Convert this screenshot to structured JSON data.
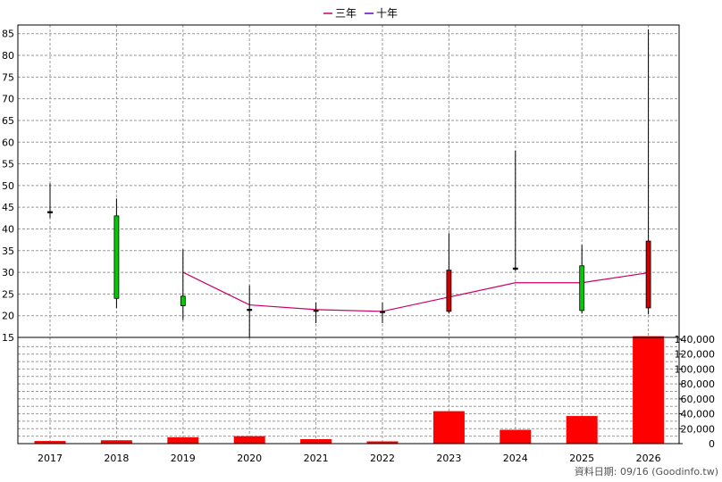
{
  "chart_data": {
    "type": "candlestick+line+bar",
    "legend": [
      {
        "name": "三年",
        "color": "#cc0066"
      },
      {
        "name": "十年",
        "color": "#6600cc"
      }
    ],
    "categories": [
      "2017",
      "2018",
      "2019",
      "2020",
      "2021",
      "2022",
      "2023",
      "2024",
      "2025",
      "2026"
    ],
    "price_axis": {
      "ylim": [
        15,
        87
      ],
      "ticks": [
        15,
        20,
        25,
        30,
        35,
        40,
        45,
        50,
        55,
        60,
        65,
        70,
        75,
        80,
        85
      ]
    },
    "volume_axis": {
      "ylim": [
        0,
        140000
      ],
      "ticks": [
        0,
        20000,
        40000,
        60000,
        80000,
        100000,
        120000,
        140000
      ],
      "tick_labels": [
        "0",
        "20,000",
        "40,000",
        "60,000",
        "80,000",
        "100,000",
        "120,000",
        "140,000"
      ]
    },
    "candles": [
      {
        "x": "2017",
        "open": 44,
        "close": 44,
        "high": 50.5,
        "low": 42.5,
        "color": "#000000"
      },
      {
        "x": "2018",
        "open": 43,
        "close": 24,
        "high": 47,
        "low": 21.8,
        "color": "#00cc00"
      },
      {
        "x": "2019",
        "open": 24.5,
        "close": 22.3,
        "high": 35.3,
        "low": 19,
        "color": "#00cc00"
      },
      {
        "x": "2020",
        "open": 21.5,
        "close": 21.5,
        "high": 27,
        "low": 15,
        "color": "#000000"
      },
      {
        "x": "2021",
        "open": 21.3,
        "close": 21.3,
        "high": 23,
        "low": 18.3,
        "color": "#000000"
      },
      {
        "x": "2022",
        "open": 21,
        "close": 21,
        "high": 23,
        "low": 18.3,
        "color": "#000000"
      },
      {
        "x": "2023",
        "open": 21,
        "close": 30.5,
        "high": 39,
        "low": 20.5,
        "color": "#cc0000"
      },
      {
        "x": "2024",
        "open": 31,
        "close": 31,
        "high": 58,
        "low": 30.3,
        "color": "#000000"
      },
      {
        "x": "2025",
        "open": 31.5,
        "close": 21.2,
        "high": 36.3,
        "low": 20.5,
        "color": "#00cc00"
      },
      {
        "x": "2026",
        "open": 21.8,
        "close": 37.2,
        "high": 86,
        "low": 20.3,
        "color": "#cc0000"
      }
    ],
    "lines": [
      {
        "name": "三年",
        "color": "#cc0066",
        "points": [
          [
            "2019",
            30
          ],
          [
            "2020",
            22.5
          ],
          [
            "2021",
            21.4
          ],
          [
            "2022",
            21
          ],
          [
            "2023",
            24.3
          ],
          [
            "2024",
            27.6
          ],
          [
            "2025",
            27.6
          ],
          [
            "2026",
            29.9
          ]
        ]
      }
    ],
    "volume": {
      "color": "#ff0000",
      "values": [
        3500,
        4500,
        8500,
        10000,
        6000,
        3000,
        43500,
        18500,
        37000,
        144000
      ]
    },
    "footer": "資料日期: 09/16 (Goodinfo.tw)"
  }
}
